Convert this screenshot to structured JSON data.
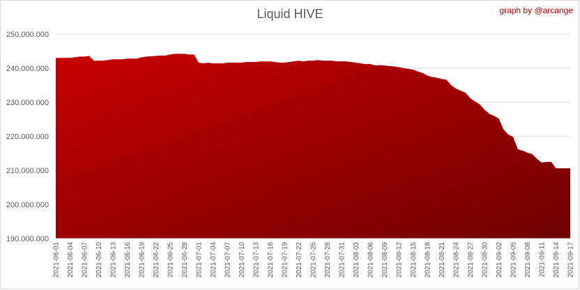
{
  "chart_data": {
    "type": "area",
    "title": "Liquid HIVE",
    "annotation": "graph by @arcange",
    "xlabel": "",
    "ylabel": "",
    "ylim": [
      190000000,
      250000000
    ],
    "yticks": [
      190000000,
      200000000,
      210000000,
      220000000,
      230000000,
      240000000,
      250000000
    ],
    "ytick_labels": [
      "190.000.000",
      "200.000.000",
      "210.000.000",
      "220.000.000",
      "230.000.000",
      "240.000.000",
      "250.000.000"
    ],
    "grid": true,
    "legend": "none",
    "colors": {
      "fill_top": "#c80000",
      "fill_bottom": "#6e0000",
      "grid": "#d9d9d9",
      "title": "#595959",
      "credit": "#c00000"
    },
    "x": [
      "2021-06-01",
      "2021-06-02",
      "2021-06-03",
      "2021-06-04",
      "2021-06-05",
      "2021-06-06",
      "2021-06-07",
      "2021-06-08",
      "2021-06-09",
      "2021-06-10",
      "2021-06-11",
      "2021-06-12",
      "2021-06-13",
      "2021-06-14",
      "2021-06-15",
      "2021-06-16",
      "2021-06-17",
      "2021-06-18",
      "2021-06-19",
      "2021-06-20",
      "2021-06-21",
      "2021-06-22",
      "2021-06-23",
      "2021-06-24",
      "2021-06-25",
      "2021-06-26",
      "2021-06-27",
      "2021-06-28",
      "2021-06-29",
      "2021-06-30",
      "2021-07-01",
      "2021-07-02",
      "2021-07-03",
      "2021-07-04",
      "2021-07-05",
      "2021-07-06",
      "2021-07-07",
      "2021-07-08",
      "2021-07-09",
      "2021-07-10",
      "2021-07-11",
      "2021-07-12",
      "2021-07-13",
      "2021-07-14",
      "2021-07-15",
      "2021-07-16",
      "2021-07-17",
      "2021-07-18",
      "2021-07-19",
      "2021-07-20",
      "2021-07-21",
      "2021-07-22",
      "2021-07-23",
      "2021-07-24",
      "2021-07-25",
      "2021-07-26",
      "2021-07-27",
      "2021-07-28",
      "2021-07-29",
      "2021-07-30",
      "2021-07-31",
      "2021-08-01",
      "2021-08-02",
      "2021-08-03",
      "2021-08-04",
      "2021-08-05",
      "2021-08-06",
      "2021-08-07",
      "2021-08-08",
      "2021-08-09",
      "2021-08-10",
      "2021-08-11",
      "2021-08-12",
      "2021-08-13",
      "2021-08-14",
      "2021-08-15",
      "2021-08-16",
      "2021-08-17",
      "2021-08-18",
      "2021-08-19",
      "2021-08-20",
      "2021-08-21",
      "2021-08-22",
      "2021-08-23",
      "2021-08-24",
      "2021-08-25",
      "2021-08-26",
      "2021-08-27",
      "2021-08-28",
      "2021-08-29",
      "2021-08-30",
      "2021-08-31",
      "2021-09-01",
      "2021-09-02",
      "2021-09-03",
      "2021-09-04",
      "2021-09-05",
      "2021-09-06",
      "2021-09-07",
      "2021-09-08",
      "2021-09-09",
      "2021-09-10",
      "2021-09-11",
      "2021-09-12",
      "2021-09-13",
      "2021-09-14",
      "2021-09-15",
      "2021-09-16",
      "2021-09-17"
    ],
    "xtick_labels": [
      "2021-06-01",
      "2021-06-04",
      "2021-06-07",
      "2021-06-10",
      "2021-06-13",
      "2021-06-16",
      "2021-06-19",
      "2021-06-22",
      "2021-06-25",
      "2021-06-28",
      "2021-07-01",
      "2021-07-04",
      "2021-07-07",
      "2021-07-10",
      "2021-07-13",
      "2021-07-16",
      "2021-07-19",
      "2021-07-22",
      "2021-07-25",
      "2021-07-28",
      "2021-07-31",
      "2021-08-03",
      "2021-08-06",
      "2021-08-09",
      "2021-08-12",
      "2021-08-15",
      "2021-08-18",
      "2021-08-21",
      "2021-08-24",
      "2021-08-27",
      "2021-08-30",
      "2021-09-02",
      "2021-09-05",
      "2021-09-08",
      "2021-09-11",
      "2021-09-14",
      "2021-09-17"
    ],
    "series": [
      {
        "values": [
          243000000,
          243000000,
          243000000,
          243000000,
          243200000,
          243400000,
          243400000,
          243600000,
          242200000,
          242200000,
          242200000,
          242400000,
          242600000,
          242600000,
          242600000,
          242800000,
          242800000,
          242800000,
          243200000,
          243400000,
          243500000,
          243600000,
          243700000,
          243700000,
          244000000,
          244200000,
          244200000,
          244200000,
          244000000,
          244000000,
          241600000,
          241400000,
          241600000,
          241400000,
          241400000,
          241400000,
          241600000,
          241600000,
          241600000,
          241600000,
          241800000,
          241800000,
          241800000,
          242000000,
          242000000,
          242000000,
          241800000,
          241600000,
          241600000,
          241800000,
          242000000,
          242200000,
          242000000,
          242200000,
          242200000,
          242400000,
          242200000,
          242200000,
          242200000,
          242000000,
          242000000,
          242000000,
          241800000,
          241600000,
          241400000,
          241200000,
          241200000,
          240800000,
          240900000,
          240800000,
          240600000,
          240500000,
          240300000,
          240000000,
          239800000,
          239600000,
          239000000,
          238600000,
          237800000,
          237400000,
          237200000,
          236800000,
          236600000,
          235000000,
          234000000,
          233400000,
          232800000,
          231200000,
          230200000,
          229400000,
          227800000,
          226600000,
          226000000,
          225200000,
          222000000,
          220500000,
          219800000,
          216200000,
          215800000,
          215200000,
          214800000,
          213400000,
          212300000,
          212500000,
          212500000,
          210600000,
          210600000,
          210600000,
          210600000
        ]
      }
    ]
  }
}
